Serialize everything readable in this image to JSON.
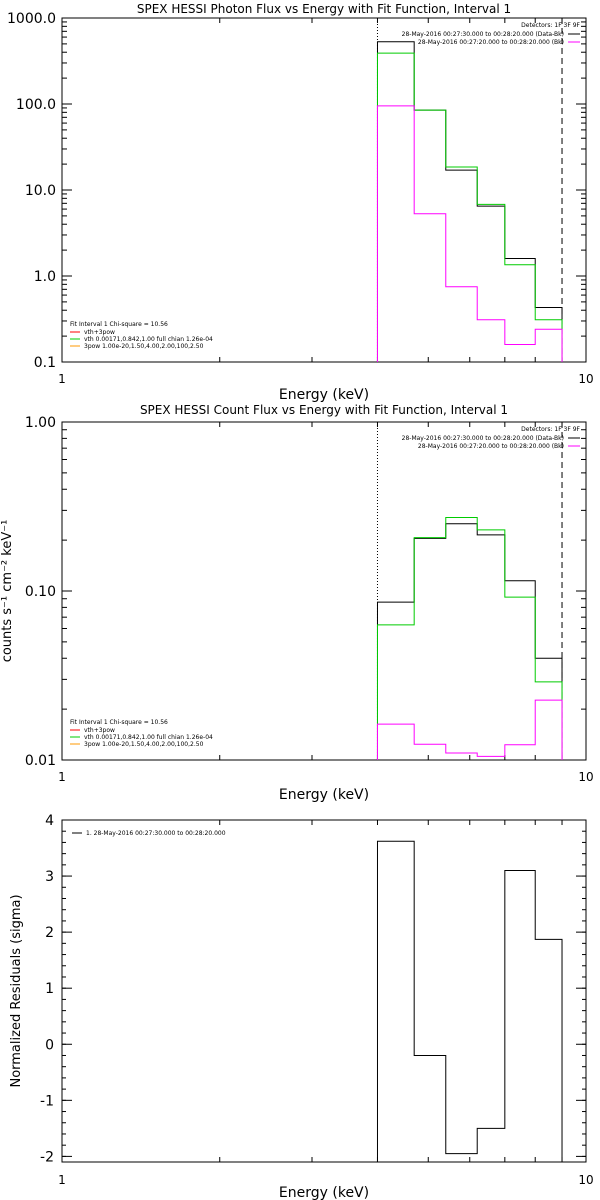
{
  "chart_data": [
    {
      "type": "line",
      "title": "SPEX HESSI Photon Flux vs Energy with Fit Function, Interval 1",
      "xlabel": "Energy (keV)",
      "ylabel": "",
      "xscale": "log",
      "yscale": "log",
      "xlim": [
        1,
        10
      ],
      "ylim": [
        0.1,
        1000
      ],
      "x_ticks": [
        "1",
        "10"
      ],
      "y_ticks": [
        "1000.0",
        "100.0",
        "10.0",
        "1.0",
        "0.1"
      ],
      "grid": false,
      "legend_position": "top-right",
      "legend": {
        "header": "Detectors: 1F 3F 9F",
        "items": [
          {
            "text": "28-May-2016 00:27:30.000 to 00:28:20.000 (Data-Bk)",
            "color": "#000000"
          },
          {
            "text": "28-May-2016 00:27:20.000 to 00:28:20.000 (Bk)",
            "color": "#ff00ff"
          }
        ]
      },
      "fit_legend": {
        "title": "Fit Interval 1    Chi-square = 10.56",
        "items": [
          {
            "text": "vth+3pow",
            "color": "#ff0000"
          },
          {
            "text": "vth 0.00171,0.842,1.00  full chian 1.26e-04",
            "color": "#00cc00"
          },
          {
            "text": "3pow 1.00e-20,1.50,4.00,2.00,100,2.50",
            "color": "#ff9900"
          }
        ]
      },
      "markers": [
        {
          "x": 4.0,
          "style": "dotted"
        },
        {
          "x": 9.0,
          "style": "dashed"
        }
      ],
      "bin_edges": [
        4.0,
        4.7,
        5.4,
        6.2,
        7.0,
        8.0,
        9.0
      ],
      "series": [
        {
          "color": "#000000",
          "values": [
            530,
            85,
            17,
            6.5,
            1.6,
            0.43
          ]
        },
        {
          "color": "#00cc00",
          "values": [
            390,
            85,
            18.5,
            6.8,
            1.35,
            0.31
          ]
        },
        {
          "color": "#ff00ff",
          "values": [
            95,
            5.3,
            0.75,
            0.31,
            0.16,
            0.24
          ]
        }
      ]
    },
    {
      "type": "line",
      "title": "SPEX HESSI Count Flux vs Energy with Fit Function, Interval 1",
      "xlabel": "Energy (keV)",
      "ylabel": "counts s⁻¹ cm⁻² keV⁻¹",
      "xscale": "log",
      "yscale": "log",
      "xlim": [
        1,
        10
      ],
      "ylim": [
        0.01,
        1.0
      ],
      "x_ticks": [
        "1",
        "10"
      ],
      "y_ticks": [
        "1.00",
        "0.10",
        "0.01"
      ],
      "grid": false,
      "legend_position": "top-right",
      "legend": {
        "header": "Detectors: 1F 3F 9F",
        "items": [
          {
            "text": "28-May-2016 00:27:30.000 to 00:28:20.000 (Data-Bk)",
            "color": "#000000"
          },
          {
            "text": "28-May-2016 00:27:20.000 to 00:28:20.000 (Bk)",
            "color": "#ff00ff"
          }
        ]
      },
      "fit_legend": {
        "title": "Fit Interval 1    Chi-square = 10.56",
        "items": [
          {
            "text": "vth+3pow",
            "color": "#ff0000"
          },
          {
            "text": "vth 0.00171,0.842,1.00  full chian 1.26e-04",
            "color": "#00cc00"
          },
          {
            "text": "3pow 1.00e-20,1.50,4.00,2.00,100,2.50",
            "color": "#ff9900"
          }
        ]
      },
      "markers": [
        {
          "x": 4.0,
          "style": "dotted"
        },
        {
          "x": 9.0,
          "style": "dashed"
        }
      ],
      "bin_edges": [
        4.0,
        4.7,
        5.4,
        6.2,
        7.0,
        8.0,
        9.0
      ],
      "series": [
        {
          "color": "#000000",
          "values": [
            0.086,
            0.205,
            0.25,
            0.215,
            0.115,
            0.04
          ]
        },
        {
          "color": "#00cc00",
          "values": [
            0.063,
            0.207,
            0.272,
            0.23,
            0.092,
            0.029
          ]
        },
        {
          "color": "#ff00ff",
          "values": [
            0.0163,
            0.0124,
            0.011,
            0.0105,
            0.0123,
            0.0226
          ]
        }
      ]
    },
    {
      "type": "line",
      "title": "",
      "xlabel": "Energy (keV)",
      "ylabel": "Normalized Residuals (sigma)",
      "xscale": "log",
      "yscale": "linear",
      "xlim": [
        1,
        10
      ],
      "ylim": [
        -2.1,
        4
      ],
      "x_ticks": [
        "1",
        "10"
      ],
      "y_ticks": [
        "4",
        "3",
        "2",
        "1",
        "0",
        "-1",
        "-2"
      ],
      "grid": false,
      "legend_position": "top-left",
      "legend": {
        "header": "",
        "items": [
          {
            "text": "1. 28-May-2016 00:27:30.000 to 00:28:20.000",
            "color": "#000000"
          }
        ]
      },
      "bin_edges": [
        4.0,
        4.7,
        5.4,
        6.2,
        7.0,
        8.0,
        9.0
      ],
      "series": [
        {
          "color": "#000000",
          "values": [
            3.62,
            -0.2,
            -1.95,
            -1.5,
            3.1,
            1.87
          ]
        }
      ]
    }
  ]
}
